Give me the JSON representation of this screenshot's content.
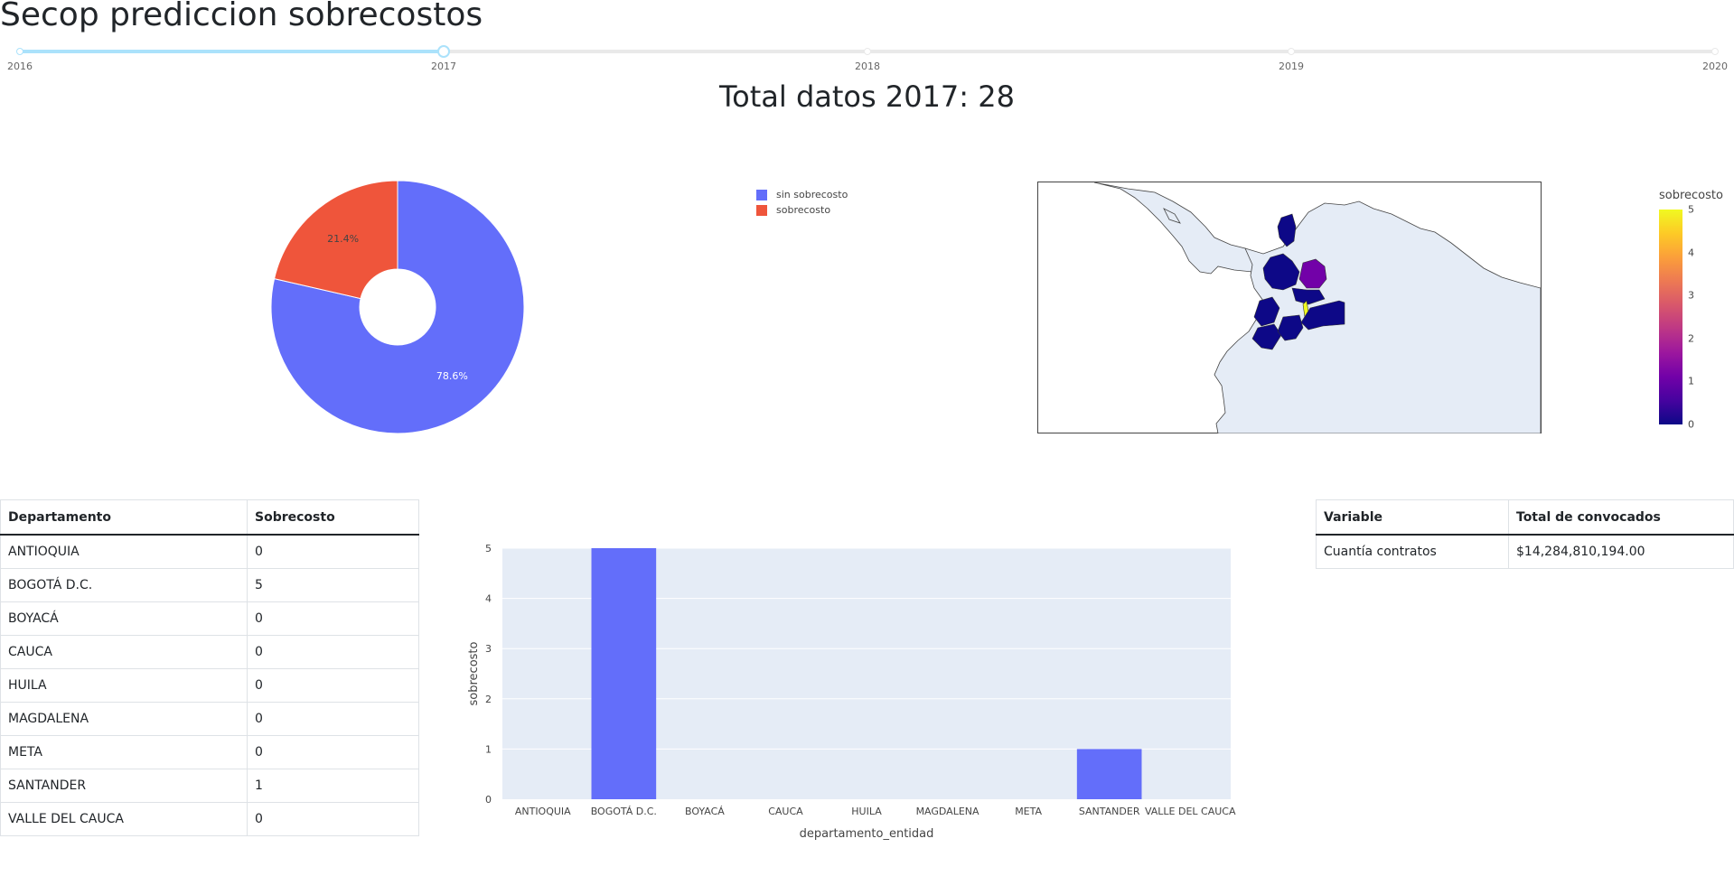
{
  "page": {
    "title": "Secop prediccion sobrecostos",
    "total_heading": "Total datos 2017: 28"
  },
  "slider": {
    "marks": [
      "2016",
      "2017",
      "2018",
      "2019",
      "2020"
    ],
    "min": 2016,
    "max": 2020,
    "value": 2017,
    "track_color": "#abe2fb"
  },
  "pie_chart": {
    "type": "pie",
    "hole": 0.3,
    "slices": [
      {
        "label": "sin sobrecosto",
        "value": 78.6,
        "text": "78.6%",
        "color": "#636efa"
      },
      {
        "label": "sobrecosto",
        "value": 21.4,
        "text": "21.4%",
        "color": "#ef553b"
      }
    ],
    "legend": [
      "sin sobrecosto",
      "sobrecosto"
    ],
    "legend_position": "top-right"
  },
  "map": {
    "colorbar_title": "sobrecosto",
    "colorbar_ticks": [
      "0",
      "1",
      "2",
      "3",
      "4",
      "5"
    ],
    "range": [
      0,
      5
    ],
    "land_color": "#e5ecf6",
    "colorscale": [
      "#0d0887",
      "#7201a8",
      "#bd3786",
      "#ed7953",
      "#fdca26",
      "#f0f921"
    ]
  },
  "dept_table": {
    "headers": [
      "Departamento",
      "Sobrecosto"
    ],
    "rows": [
      [
        "ANTIOQUIA",
        "0"
      ],
      [
        "BOGOTÁ D.C.",
        "5"
      ],
      [
        "BOYACÁ",
        "0"
      ],
      [
        "CAUCA",
        "0"
      ],
      [
        "HUILA",
        "0"
      ],
      [
        "MAGDALENA",
        "0"
      ],
      [
        "META",
        "0"
      ],
      [
        "SANTANDER",
        "1"
      ],
      [
        "VALLE DEL CAUCA",
        "0"
      ]
    ]
  },
  "vars_table": {
    "headers": [
      "Variable",
      "Total de convocados"
    ],
    "rows": [
      [
        "Cuantía contratos",
        "$14,284,810,194.00"
      ]
    ]
  },
  "chart_data": {
    "type": "bar",
    "categories": [
      "ANTIOQUIA",
      "BOGOTÁ D.C.",
      "BOYACÁ",
      "CAUCA",
      "HUILA",
      "MAGDALENA",
      "META",
      "SANTANDER",
      "VALLE DEL CAUCA"
    ],
    "values": [
      0,
      5,
      0,
      0,
      0,
      0,
      0,
      1,
      0
    ],
    "xlabel": "departamento_entidad",
    "ylabel": "sobrecosto",
    "ylim": [
      0,
      5
    ],
    "yticks": [
      "0",
      "1",
      "2",
      "3",
      "4",
      "5"
    ],
    "grid": true,
    "bar_color": "#636efa",
    "plot_bg": "#e5ecf6"
  }
}
